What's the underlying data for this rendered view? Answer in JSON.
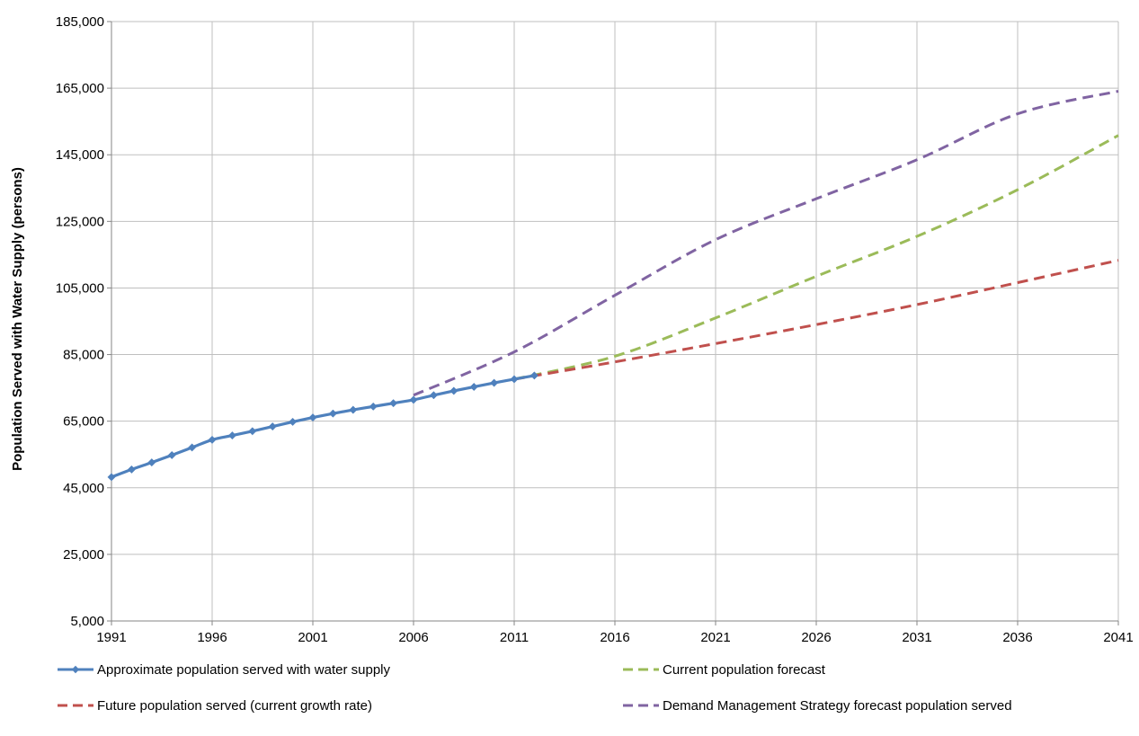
{
  "chart_data": {
    "type": "line",
    "title": "",
    "xlabel": "",
    "ylabel": "Population Served with Water Supply (persons)",
    "xlim": [
      1991,
      2041
    ],
    "ylim": [
      5000,
      185000
    ],
    "x_ticks": [
      "1991",
      "1996",
      "2001",
      "2006",
      "2011",
      "2016",
      "2021",
      "2026",
      "2031",
      "2036",
      "2041"
    ],
    "y_ticks": [
      "5,000",
      "25,000",
      "45,000",
      "65,000",
      "85,000",
      "105,000",
      "125,000",
      "145,000",
      "165,000",
      "185,000"
    ],
    "grid": true,
    "legend_position": "bottom",
    "series": [
      {
        "name": "Approximate population served with water supply",
        "color": "#4F81BD",
        "style": "solid",
        "marker": "diamond",
        "x": [
          1991,
          1992,
          1993,
          1994,
          1995,
          1996,
          1997,
          1998,
          1999,
          2000,
          2001,
          2002,
          2003,
          2004,
          2005,
          2006,
          2007,
          2008,
          2009,
          2010,
          2011,
          2012
        ],
        "y": [
          48200,
          50500,
          52600,
          54800,
          57100,
          59400,
          60700,
          62000,
          63400,
          64800,
          66100,
          67300,
          68400,
          69400,
          70400,
          71400,
          72800,
          74100,
          75300,
          76500,
          77600,
          78700
        ]
      },
      {
        "name": "Current population forecast",
        "color": "#9BBB59",
        "style": "dashed",
        "x": [
          2011,
          2016,
          2021,
          2026,
          2031,
          2036,
          2041
        ],
        "y": [
          77600,
          84500,
          96000,
          108500,
          120500,
          134500,
          150800
        ]
      },
      {
        "name": "Future population served (current growth rate)",
        "color": "#C0504D",
        "style": "dashed",
        "x": [
          2011,
          2016,
          2021,
          2026,
          2031,
          2036,
          2041
        ],
        "y": [
          77600,
          82800,
          88300,
          94000,
          100000,
          106600,
          113300
        ]
      },
      {
        "name": "Demand Management Strategy forecast population served",
        "color": "#8064A2",
        "style": "dashed",
        "x": [
          2006,
          2011,
          2016,
          2021,
          2026,
          2031,
          2036,
          2041
        ],
        "y": [
          72800,
          85800,
          102800,
          119500,
          131800,
          143500,
          157300,
          164100
        ]
      }
    ]
  }
}
